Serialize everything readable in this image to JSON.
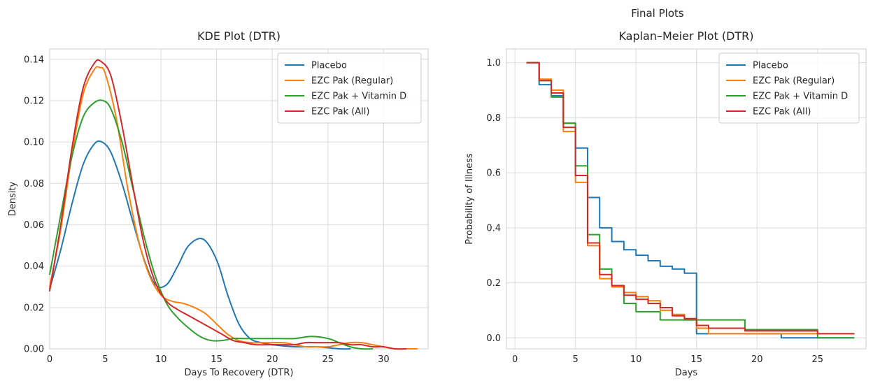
{
  "figure": {
    "suptitle": "Final Plots"
  },
  "chart_data": [
    {
      "type": "line",
      "title": "KDE Plot (DTR)",
      "xlabel": "Days To Recovery (DTR)",
      "ylabel": "Density",
      "xlim": [
        0,
        34
      ],
      "ylim": [
        0,
        0.145
      ],
      "xticks": [
        0,
        5,
        10,
        15,
        20,
        25,
        30
      ],
      "xtick_labels": [
        "0",
        "5",
        "10",
        "15",
        "20",
        "25",
        "30"
      ],
      "yticks": [
        0,
        0.02,
        0.04,
        0.06,
        0.08,
        0.1,
        0.12,
        0.14
      ],
      "ytick_labels": [
        "0.00",
        "0.02",
        "0.04",
        "0.06",
        "0.08",
        "0.10",
        "0.12",
        "0.14"
      ],
      "grid": true,
      "legend": "top-right",
      "series": [
        {
          "name": "Placebo",
          "color": "#1f77b4",
          "x": [
            0,
            1,
            2,
            3,
            4,
            4.7,
            5.5,
            6.5,
            7.5,
            8.5,
            9.5,
            10.5,
            11.5,
            12.5,
            13.8,
            15,
            16,
            17,
            18,
            19,
            20,
            22,
            24,
            26,
            27
          ],
          "y": [
            0.029,
            0.048,
            0.07,
            0.089,
            0.099,
            0.1,
            0.095,
            0.08,
            0.061,
            0.043,
            0.031,
            0.031,
            0.04,
            0.05,
            0.053,
            0.043,
            0.026,
            0.012,
            0.005,
            0.003,
            0.002,
            0.001,
            0.001,
            0.0,
            0.0
          ]
        },
        {
          "name": "EZC Pak (Regular)",
          "color": "#ff7f0e",
          "x": [
            0,
            1,
            2,
            3,
            4,
            4.5,
            5,
            6,
            7,
            8,
            9,
            10,
            11,
            12,
            13,
            14,
            15,
            16,
            17,
            18,
            19,
            20,
            21,
            22,
            23,
            24,
            25,
            26,
            27,
            28,
            29,
            30,
            31,
            32,
            33
          ],
          "y": [
            0.03,
            0.058,
            0.094,
            0.123,
            0.135,
            0.136,
            0.133,
            0.111,
            0.078,
            0.052,
            0.035,
            0.026,
            0.023,
            0.022,
            0.02,
            0.017,
            0.012,
            0.007,
            0.004,
            0.003,
            0.003,
            0.003,
            0.003,
            0.002,
            0.001,
            0.001,
            0.001,
            0.002,
            0.003,
            0.003,
            0.002,
            0.001,
            0.0,
            0.0,
            0.0
          ]
        },
        {
          "name": "EZC Pak + Vitamin D",
          "color": "#2ca02c",
          "x": [
            0,
            1,
            2,
            3,
            4,
            4.8,
            5.5,
            6.5,
            7.5,
            8.5,
            9.5,
            10.5,
            11.5,
            12.5,
            13.5,
            14.5,
            15.5,
            16.5,
            17.5,
            18.5,
            20,
            22,
            23.5,
            25,
            26,
            27,
            28,
            29
          ],
          "y": [
            0.036,
            0.065,
            0.093,
            0.112,
            0.119,
            0.12,
            0.116,
            0.1,
            0.077,
            0.054,
            0.035,
            0.022,
            0.015,
            0.01,
            0.006,
            0.004,
            0.004,
            0.005,
            0.005,
            0.005,
            0.005,
            0.005,
            0.006,
            0.005,
            0.003,
            0.001,
            0.0,
            0.0
          ]
        },
        {
          "name": "EZC Pak (All)",
          "color": "#d62728",
          "x": [
            0,
            1,
            2,
            3,
            4,
            4.6,
            5.5,
            6.5,
            7.5,
            8.5,
            9.5,
            10.5,
            11.5,
            12.5,
            13.5,
            14.5,
            15.5,
            16.5,
            17.5,
            18.5,
            19.5,
            21,
            22,
            23,
            24,
            25,
            26,
            27,
            28,
            29,
            30,
            31,
            32
          ],
          "y": [
            0.028,
            0.06,
            0.097,
            0.126,
            0.138,
            0.139,
            0.132,
            0.108,
            0.078,
            0.05,
            0.032,
            0.023,
            0.019,
            0.016,
            0.013,
            0.01,
            0.007,
            0.004,
            0.003,
            0.002,
            0.002,
            0.002,
            0.002,
            0.003,
            0.003,
            0.003,
            0.003,
            0.002,
            0.002,
            0.001,
            0.001,
            0.0,
            0.0
          ]
        }
      ]
    },
    {
      "type": "line",
      "step": true,
      "title": "Kaplan–Meier Plot (DTR)",
      "xlabel": "Days",
      "ylabel": "Probability of Illness",
      "xlim": [
        -0.7,
        29
      ],
      "ylim": [
        -0.04,
        1.05
      ],
      "xticks": [
        0,
        5,
        10,
        15,
        20,
        25
      ],
      "xtick_labels": [
        "0",
        "5",
        "10",
        "15",
        "20",
        "25"
      ],
      "yticks": [
        0,
        0.2,
        0.4,
        0.6,
        0.8,
        1.0
      ],
      "ytick_labels": [
        "0.0",
        "0.2",
        "0.4",
        "0.6",
        "0.8",
        "1.0"
      ],
      "grid": true,
      "legend": "top-right",
      "series": [
        {
          "name": "Placebo",
          "color": "#1f77b4",
          "x": [
            1,
            2,
            3,
            4,
            5,
            6,
            7,
            8,
            9,
            10,
            11,
            12,
            13,
            14,
            15,
            22,
            28
          ],
          "y": [
            1.0,
            0.92,
            0.88,
            0.78,
            0.69,
            0.51,
            0.4,
            0.35,
            0.32,
            0.3,
            0.28,
            0.26,
            0.25,
            0.235,
            0.015,
            0.0,
            0.0
          ]
        },
        {
          "name": "EZC Pak (Regular)",
          "color": "#ff7f0e",
          "x": [
            1,
            2,
            3,
            4,
            5,
            6,
            7,
            8,
            9,
            10,
            11,
            12,
            13,
            14,
            15,
            16,
            28
          ],
          "y": [
            1.0,
            0.94,
            0.9,
            0.75,
            0.565,
            0.335,
            0.215,
            0.185,
            0.165,
            0.15,
            0.135,
            0.1,
            0.085,
            0.065,
            0.035,
            0.015,
            0.015
          ]
        },
        {
          "name": "EZC Pak + Vitamin D",
          "color": "#2ca02c",
          "x": [
            1,
            2,
            3,
            4,
            5,
            6,
            7,
            8,
            9,
            10,
            12,
            15,
            19,
            25,
            28
          ],
          "y": [
            1.0,
            0.935,
            0.875,
            0.78,
            0.625,
            0.375,
            0.25,
            0.19,
            0.125,
            0.095,
            0.065,
            0.065,
            0.03,
            0.0,
            0.0
          ]
        },
        {
          "name": "EZC Pak (All)",
          "color": "#d62728",
          "x": [
            1,
            2,
            3,
            4,
            5,
            6,
            7,
            8,
            9,
            10,
            11,
            12,
            13,
            14,
            15,
            16,
            19,
            25,
            28
          ],
          "y": [
            1.0,
            0.935,
            0.89,
            0.765,
            0.59,
            0.345,
            0.23,
            0.19,
            0.155,
            0.14,
            0.125,
            0.11,
            0.08,
            0.07,
            0.045,
            0.035,
            0.025,
            0.015,
            0.015
          ]
        }
      ]
    }
  ]
}
